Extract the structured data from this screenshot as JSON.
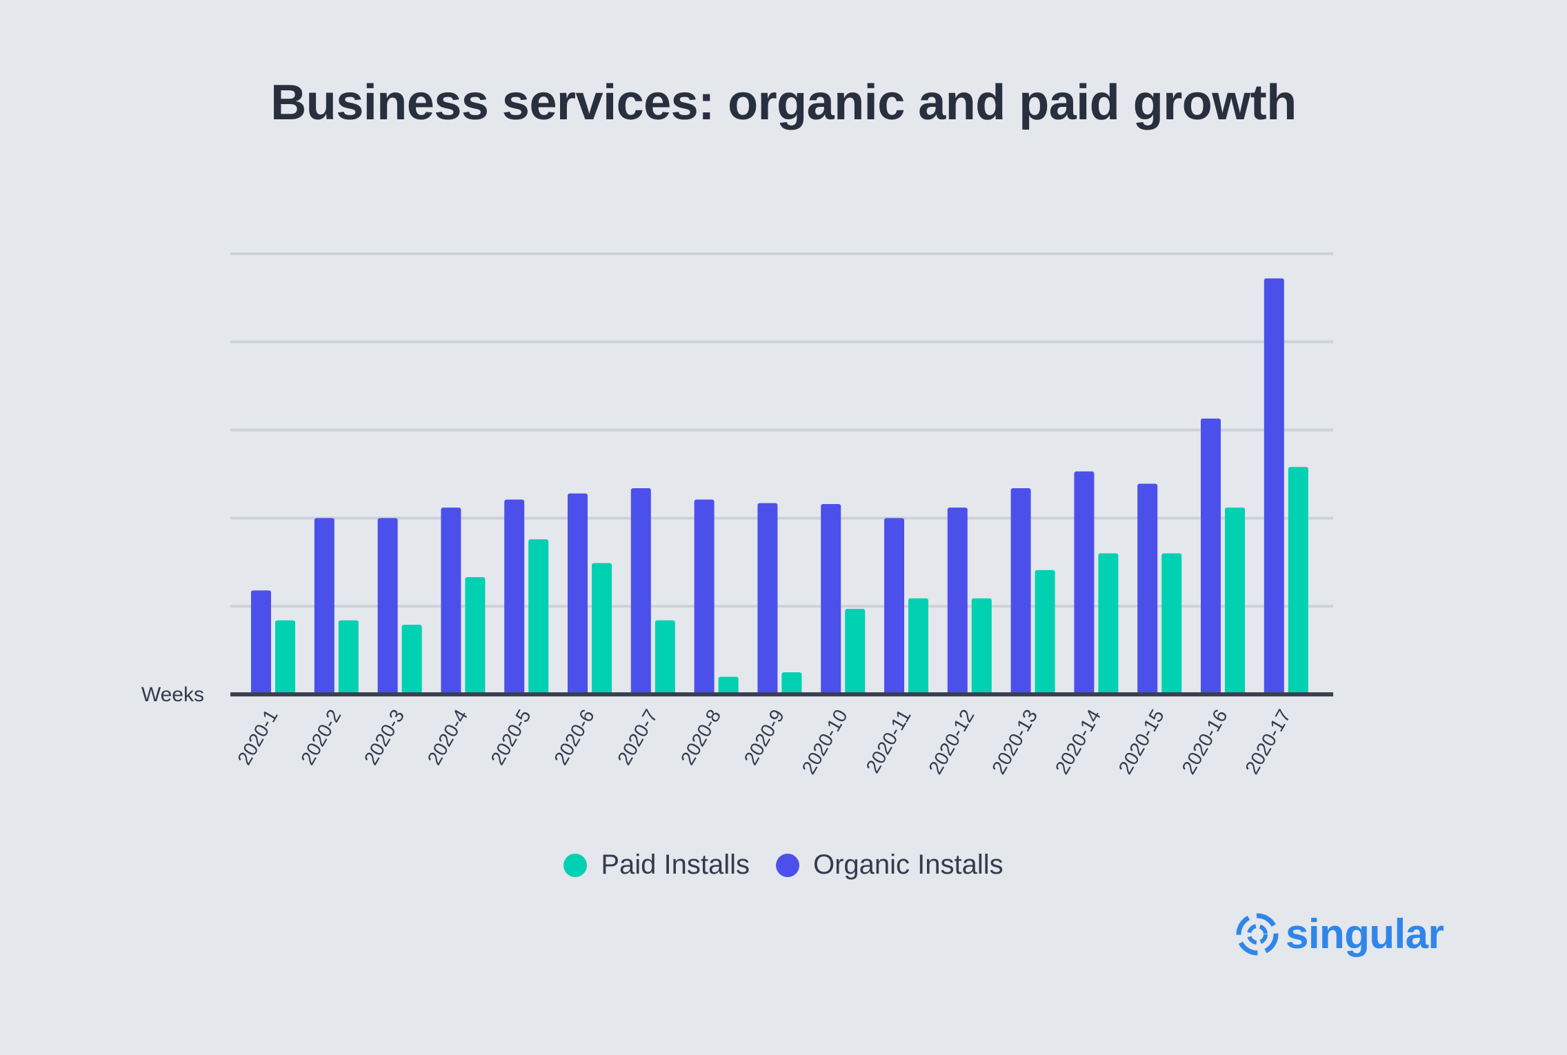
{
  "chart_data": {
    "type": "bar",
    "title": "Business services: organic and paid growth",
    "xlabel": "Weeks",
    "ylabel": "",
    "ylim": [
      0,
      5
    ],
    "grid": true,
    "legend_placement": "bottom-center",
    "categories": [
      "2020-1",
      "2020-2",
      "2020-3",
      "2020-4",
      "2020-5",
      "2020-6",
      "2020-7",
      "2020-8",
      "2020-9",
      "2020-10",
      "2020-11",
      "2020-12",
      "2020-13",
      "2020-14",
      "2020-15",
      "2020-16",
      "2020-17"
    ],
    "series": [
      {
        "name": "Organic Installs",
        "color": "#4c50eb",
        "values": [
          1.18,
          2.0,
          2.0,
          2.12,
          2.21,
          2.28,
          2.34,
          2.21,
          2.17,
          2.16,
          2.0,
          2.12,
          2.34,
          2.53,
          2.39,
          3.13,
          4.72
        ]
      },
      {
        "name": "Paid Installs",
        "color": "#00d1b2",
        "values": [
          0.84,
          0.84,
          0.79,
          1.33,
          1.76,
          1.49,
          0.84,
          0.2,
          0.25,
          0.97,
          1.09,
          1.09,
          1.41,
          1.6,
          1.6,
          2.12,
          2.58
        ]
      }
    ]
  },
  "legend": {
    "items": [
      {
        "label": "Paid Installs",
        "color": "#00d1b2"
      },
      {
        "label": "Organic Installs",
        "color": "#4c50eb"
      }
    ]
  },
  "brand": {
    "name": "singular",
    "color": "#2f86e8",
    "icon": "singular-logo-icon"
  },
  "colors": {
    "background": "#e4e7ec",
    "gridline": "#cdd1da",
    "axis": "#3a4050",
    "text": "#28303f"
  }
}
